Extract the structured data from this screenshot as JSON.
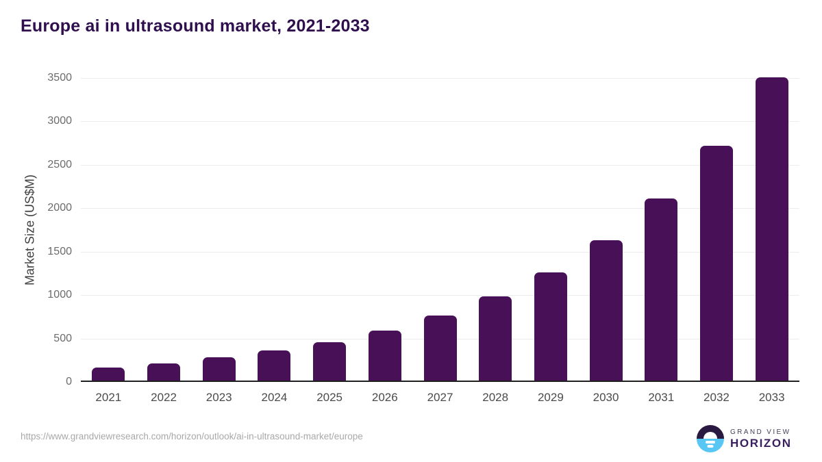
{
  "title": "Europe ai in ultrasound market, 2021-2033",
  "chart_data": {
    "type": "bar",
    "title": "Europe ai in ultrasound market, 2021-2033",
    "categories": [
      "2021",
      "2022",
      "2023",
      "2024",
      "2025",
      "2026",
      "2027",
      "2028",
      "2029",
      "2030",
      "2031",
      "2032",
      "2033"
    ],
    "values": [
      165,
      215,
      280,
      360,
      460,
      595,
      765,
      985,
      1265,
      1635,
      2110,
      2720,
      3510
    ],
    "xlabel": "",
    "ylabel": "Market Size (US$M)",
    "ylim": [
      0,
      3500
    ],
    "yticks": [
      0,
      500,
      1000,
      1500,
      2000,
      2500,
      3000,
      3500
    ],
    "grid": true,
    "legend_position": "none",
    "bar_color": "#471057"
  },
  "footer": {
    "source_url": "https://www.grandviewresearch.com/horizon/outlook/ai-in-ultrasound-market/europe",
    "logo": {
      "top_text": "GRAND VIEW",
      "bottom_text": "HORIZON"
    }
  },
  "colors": {
    "title": "#2f0f4e",
    "bar": "#471057",
    "gridline": "#ececec",
    "axis_line": "#1f1f1f",
    "y_tick_label": "#6b6b6b",
    "x_tick_label": "#4a4a4a",
    "source_url": "#a8a8a8",
    "logo_dark": "#2a1a41",
    "logo_blue": "#58c7f3",
    "logo_horizon_text": "#3a1f5f"
  }
}
